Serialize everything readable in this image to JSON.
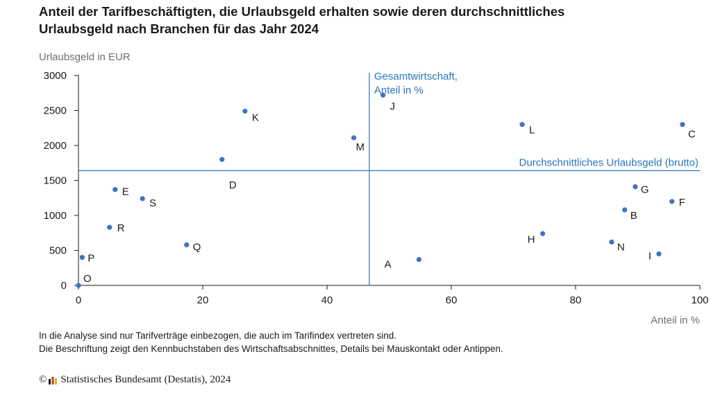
{
  "title_line1": "Anteil der Tarifbeschäftigten, die Urlaubsgeld erhalten sowie deren durchschnittliches",
  "title_line2": "Urlaubsgeld nach Branchen für das Jahr 2024",
  "notes": [
    "In die Analyse sind nur Tarifverträge einbezogen, die auch im Tarifindex vertreten sind.",
    "Die Beschriftung zeigt den Kennbuchstaben des Wirtschaftsabschnittes, Details bei Mauskontakt oder Antippen."
  ],
  "source": {
    "copyright_symbol": "©",
    "text": "Statistisches Bundesamt (Destatis), 2024"
  },
  "colors": {
    "point": "#3d73c4",
    "reference": "#2a75bb",
    "axis": "#1a1a1a",
    "muted_text": "#6f6f6f"
  },
  "chart_data": {
    "type": "scatter",
    "xlabel": "Anteil in %",
    "ylabel": "Urlaubsgeld in EUR",
    "xlim": [
      0,
      100
    ],
    "ylim": [
      0,
      3000
    ],
    "x_ticks": [
      0,
      20,
      40,
      60,
      80,
      100
    ],
    "y_ticks": [
      0,
      500,
      1000,
      1500,
      2000,
      2500,
      3000
    ],
    "grid": false,
    "reference_lines": {
      "vertical": {
        "x": 46.8,
        "label_line1": "Gesamtwirtschaft,",
        "label_line2": "Anteil in %"
      },
      "horizontal": {
        "y": 1640,
        "label": "Durchschnittliches Urlaubsgeld (brutto)"
      }
    },
    "points": [
      {
        "label": "A",
        "x": 54.8,
        "y": 370
      },
      {
        "label": "B",
        "x": 87.9,
        "y": 1080
      },
      {
        "label": "C",
        "x": 97.2,
        "y": 2300
      },
      {
        "label": "D",
        "x": 23.1,
        "y": 1800
      },
      {
        "label": "E",
        "x": 5.9,
        "y": 1370
      },
      {
        "label": "F",
        "x": 95.5,
        "y": 1200
      },
      {
        "label": "G",
        "x": 89.6,
        "y": 1410
      },
      {
        "label": "H",
        "x": 74.7,
        "y": 740
      },
      {
        "label": "I",
        "x": 93.4,
        "y": 450
      },
      {
        "label": "J",
        "x": 49.0,
        "y": 2720
      },
      {
        "label": "K",
        "x": 26.8,
        "y": 2490
      },
      {
        "label": "L",
        "x": 71.4,
        "y": 2300
      },
      {
        "label": "M",
        "x": 44.3,
        "y": 2110
      },
      {
        "label": "N",
        "x": 85.8,
        "y": 620
      },
      {
        "label": "O",
        "x": 0.0,
        "y": 0
      },
      {
        "label": "P",
        "x": 0.6,
        "y": 400
      },
      {
        "label": "Q",
        "x": 17.4,
        "y": 580
      },
      {
        "label": "R",
        "x": 5.0,
        "y": 830
      },
      {
        "label": "S",
        "x": 10.3,
        "y": 1240
      }
    ]
  }
}
